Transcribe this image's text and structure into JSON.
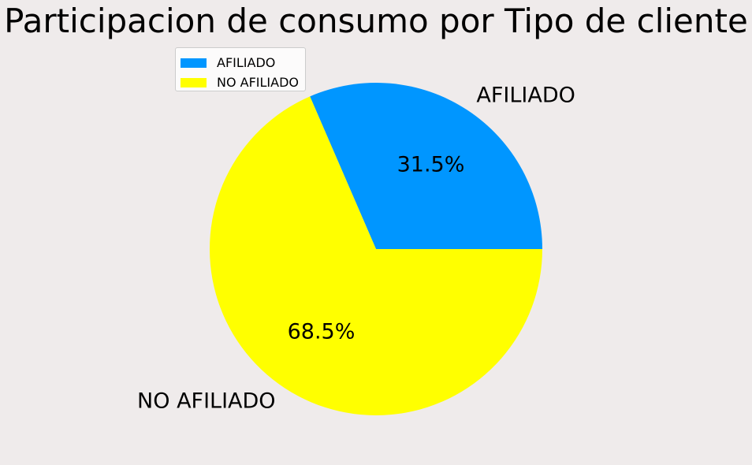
{
  "chart_data": {
    "type": "pie",
    "title": "Participacion de consumo por Tipo de cliente",
    "categories": [
      "AFILIADO",
      "NO AFILIADO"
    ],
    "values": [
      31.5,
      68.5
    ],
    "pct_labels": [
      "31.5%",
      "68.5%"
    ],
    "colors": [
      "#0096ff",
      "#ffff00"
    ],
    "start_angle": 0,
    "direction": "counterclockwise",
    "legend": {
      "placement": "upper-left",
      "entries": [
        "AFILIADO",
        "NO AFILIADO"
      ]
    }
  }
}
